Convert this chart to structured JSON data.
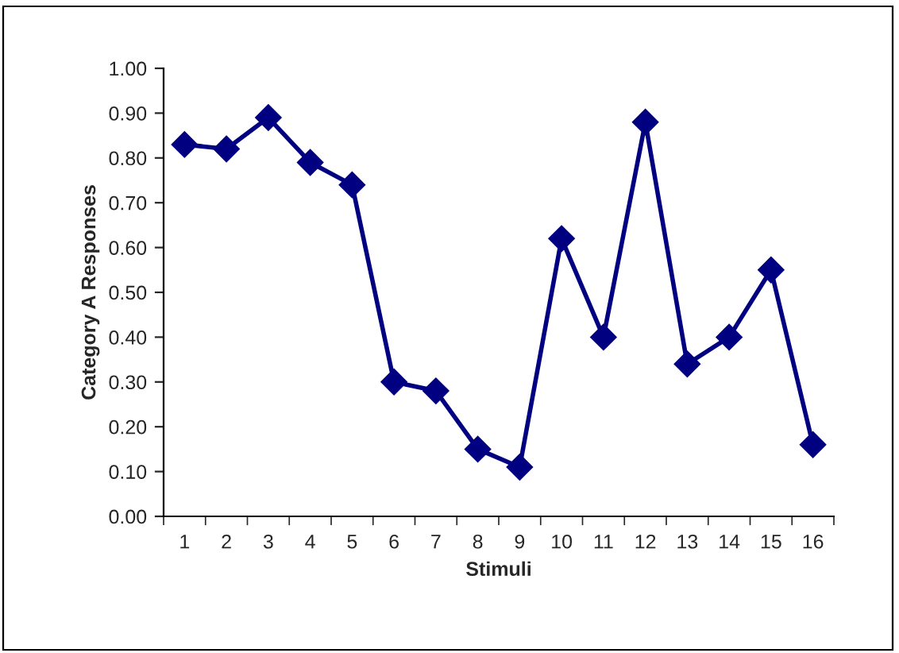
{
  "chart_data": {
    "type": "line",
    "xlabel": "Stimuli",
    "ylabel": "Category A Responses",
    "categories": [
      "1",
      "2",
      "3",
      "4",
      "5",
      "6",
      "7",
      "8",
      "9",
      "10",
      "11",
      "12",
      "13",
      "14",
      "15",
      "16"
    ],
    "series": [
      {
        "color": "#000080",
        "values": [
          0.83,
          0.82,
          0.89,
          0.79,
          0.74,
          0.3,
          0.28,
          0.15,
          0.11,
          0.62,
          0.4,
          0.88,
          0.34,
          0.4,
          0.55,
          0.16
        ]
      }
    ],
    "ylim": [
      0,
      1
    ],
    "yticks": [
      {
        "value": 0,
        "label": "0.00"
      },
      {
        "value": 0.1,
        "label": "0.10"
      },
      {
        "value": 0.2,
        "label": "0.20"
      },
      {
        "value": 0.3,
        "label": "0.30"
      },
      {
        "value": 0.4,
        "label": "0.40"
      },
      {
        "value": 0.5,
        "label": "0.50"
      },
      {
        "value": 0.6,
        "label": "0.60"
      },
      {
        "value": 0.7,
        "label": "0.70"
      },
      {
        "value": 0.8,
        "label": "0.80"
      },
      {
        "value": 0.9,
        "label": "0.90"
      },
      {
        "value": 1,
        "label": "1.00"
      }
    ],
    "marker": "diamond",
    "line_style": "solid",
    "grid": false,
    "legend": false
  }
}
